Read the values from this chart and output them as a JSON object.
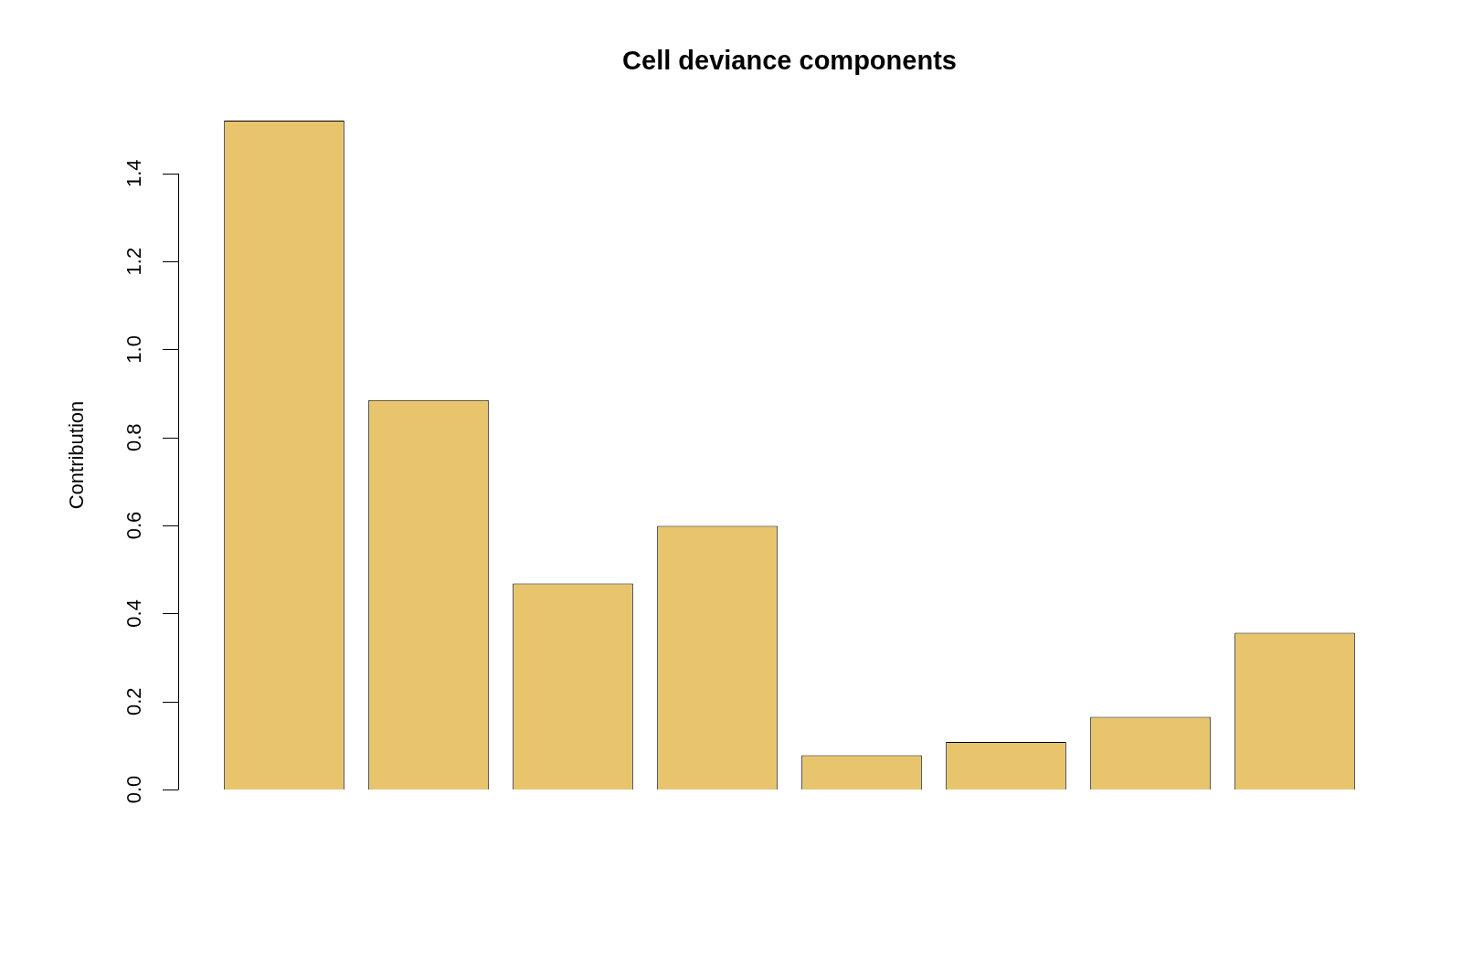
{
  "chart_data": {
    "type": "bar",
    "title": "Cell deviance components",
    "ylabel": "Contribution",
    "categories": [
      null,
      null,
      null,
      null,
      null,
      null,
      null,
      null
    ],
    "values": [
      1.52,
      0.885,
      0.468,
      0.599,
      0.078,
      0.108,
      0.165,
      0.356
    ],
    "color": "#e8c46c",
    "ylim": [
      0,
      1.52
    ],
    "yticks": [
      {
        "value": 0,
        "label": "0.0"
      },
      0.2,
      0.4,
      0.6,
      0.8,
      {
        "value": 1,
        "label": "1.0"
      },
      1.2,
      1.4
    ],
    "grid": false,
    "legend": false
  }
}
